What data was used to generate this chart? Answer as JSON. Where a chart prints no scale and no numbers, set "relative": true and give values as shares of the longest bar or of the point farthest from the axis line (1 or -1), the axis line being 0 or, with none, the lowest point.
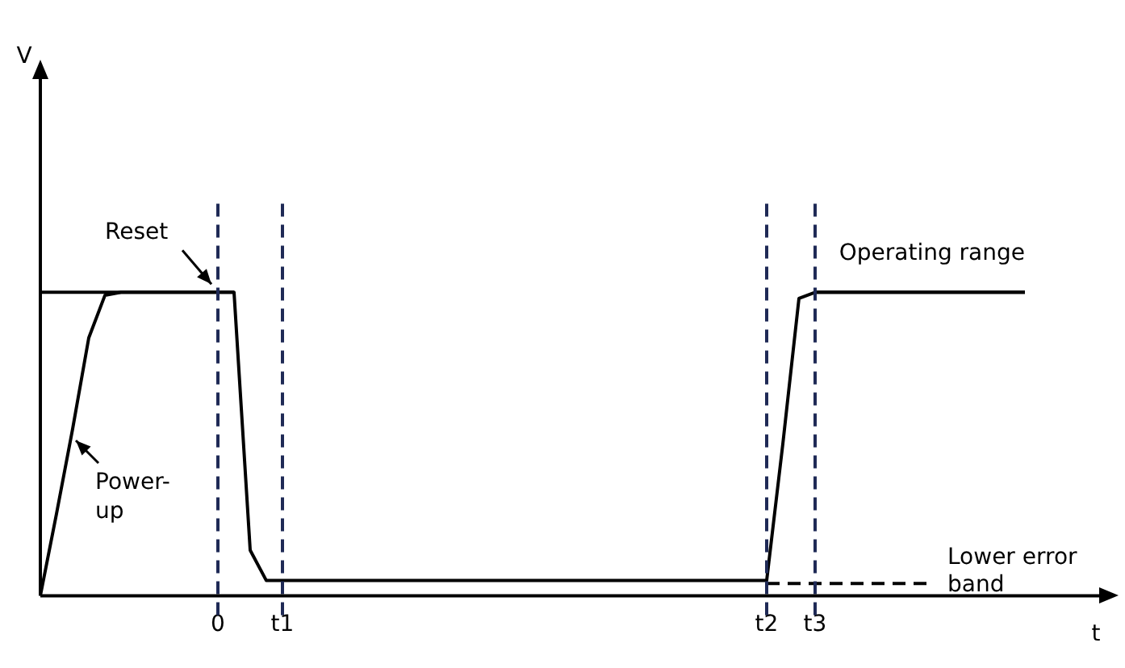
{
  "chart_data": {
    "type": "line",
    "relative": true,
    "xlabel": "t",
    "grid": false,
    "legend": false,
    "marker": "none",
    "categories": [
      null,
      null,
      null,
      null,
      null,
      null,
      null,
      null,
      null,
      null,
      null,
      "0",
      null,
      null,
      null,
      "t1",
      null,
      null,
      null,
      null,
      null,
      null,
      null,
      null,
      null,
      null,
      null,
      null,
      null,
      null,
      null,
      null,
      null,
      null,
      null,
      null,
      null,
      null,
      null,
      null,
      null,
      null,
      null,
      null,
      null,
      "t2",
      null,
      null,
      "t3",
      null,
      null,
      null,
      null,
      null,
      null,
      null,
      null,
      null,
      null,
      null,
      null,
      null,
      null,
      null,
      null,
      null,
      null
    ],
    "series": [
      {
        "color": "#000000",
        "values": [
          0,
          0.27,
          0.55,
          0.85,
          0.99,
          1,
          1,
          1,
          1,
          1,
          1,
          1,
          1,
          0.15,
          0.05,
          0.05,
          0.05,
          0.05,
          0.05,
          0.05,
          0.05,
          0.05,
          0.05,
          0.05,
          0.05,
          0.05,
          0.05,
          0.05,
          0.05,
          0.05,
          0.05,
          0.05,
          0.05,
          0.05,
          0.05,
          0.05,
          0.05,
          0.05,
          0.05,
          0.05,
          0.05,
          0.05,
          0.05,
          0.05,
          0.05,
          0.05,
          0.5,
          0.98,
          1,
          1,
          1,
          1,
          1,
          1,
          1,
          1,
          1,
          1,
          1,
          1,
          1,
          1,
          null,
          null,
          null,
          null,
          null
        ]
      },
      {
        "name": "Operating range",
        "color": "#000000",
        "values": [
          1,
          1,
          1,
          1,
          1,
          1,
          1,
          1,
          1,
          1,
          1,
          1,
          1,
          null,
          null,
          null,
          null,
          null,
          null,
          null,
          null,
          null,
          null,
          null,
          null,
          null,
          null,
          null,
          null,
          null,
          null,
          null,
          null,
          null,
          null,
          null,
          null,
          null,
          null,
          null,
          null,
          null,
          null,
          null,
          null,
          null,
          null,
          null,
          1,
          1,
          1,
          1,
          1,
          1,
          1,
          1,
          1,
          1,
          1,
          1,
          1,
          1,
          null,
          null,
          null,
          null,
          null
        ]
      },
      {
        "name": "Lower error band",
        "color": "#000000",
        "line_style": "dashed",
        "values": [
          null,
          null,
          null,
          null,
          null,
          null,
          null,
          null,
          null,
          null,
          null,
          null,
          null,
          null,
          null,
          null,
          null,
          null,
          null,
          null,
          null,
          null,
          null,
          null,
          null,
          null,
          null,
          null,
          null,
          null,
          null,
          null,
          null,
          null,
          null,
          null,
          null,
          null,
          null,
          null,
          null,
          null,
          null,
          null,
          null,
          0.04,
          0.04,
          0.04,
          0.04,
          0.04,
          0.04,
          0.04,
          0.04,
          0.04,
          0.04,
          0.04,
          null,
          null,
          null,
          null,
          null,
          null,
          null,
          null,
          null,
          null,
          null
        ]
      }
    ],
    "ref_lines": [
      {
        "axis": "x",
        "value": "0",
        "color": "#1f2a56",
        "line_style": "dashed"
      },
      {
        "axis": "x",
        "value": "t1",
        "color": "#1f2a56",
        "line_style": "dashed"
      },
      {
        "axis": "x",
        "value": "t2",
        "color": "#1f2a56",
        "line_style": "dashed"
      },
      {
        "axis": "x",
        "value": "t3",
        "color": "#1f2a56",
        "line_style": "dashed"
      }
    ],
    "annotations": [
      {
        "text": "Reset",
        "x": "0",
        "y": 1
      },
      "Power-up",
      "V"
    ]
  }
}
